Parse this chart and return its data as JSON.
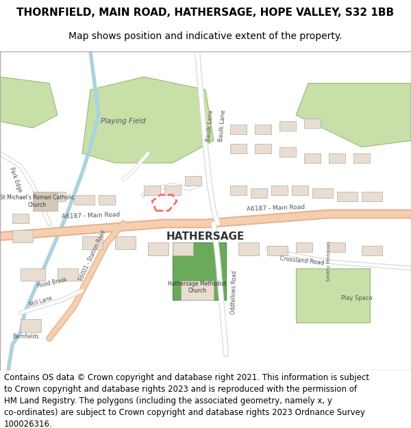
{
  "title_line1": "THORNFIELD, MAIN ROAD, HATHERSAGE, HOPE VALLEY, S32 1BB",
  "title_line2": "Map shows position and indicative extent of the property.",
  "title_fontsize": 11,
  "subtitle_fontsize": 10,
  "footer_text": "Contains OS data © Crown copyright and database right 2021. This information is subject\nto Crown copyright and database rights 2023 and is reproduced with the permission of\nHM Land Registry. The polygons (including the associated geometry, namely x, y\nco-ordinates) are subject to Crown copyright and database rights 2023 Ordnance Survey\n100026316.",
  "footer_fontsize": 8.5,
  "bg_color": "#ffffff",
  "map_bg": "#f2efe9",
  "road_color_major": "#f5c6a0",
  "road_color_minor": "#ffffff",
  "road_outline": "#cccccc",
  "green_area": "#c8dfa8",
  "dark_green": "#8fba6e",
  "blue_water": "#aad3df",
  "highlight_color": "#ff6666",
  "building_color": "#e8ddd0",
  "building_outline": "#aaaaaa",
  "text_color": "#333333",
  "road_label_color": "#555555"
}
